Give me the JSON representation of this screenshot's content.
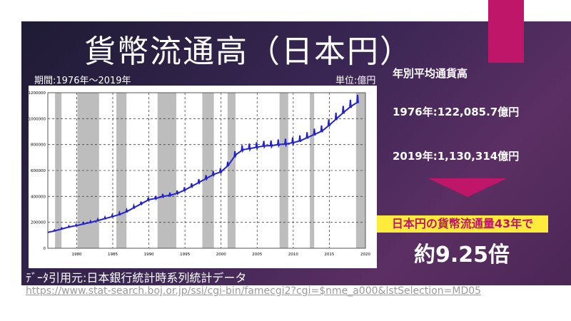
{
  "title": "貨幣流通高（日本円）",
  "period": "期間:1976年～2019年",
  "unit": "単位:億円",
  "side": {
    "heading": "年別平均通貨高",
    "value_1976": "1976年:122,085.7億円",
    "value_2019": "2019年:1,130,314億円",
    "highlight": "日本円の貨幣流通量43年で",
    "result": "約9.25倍"
  },
  "source": "ﾃﾞｰﾀ引用元:日本銀行統計時系列統計データ",
  "url": "https://www.stat-search.boj.or.jp/ssi/cgi-bin/famecgi2?cgi=$nme_a000&lstSelection=MD05",
  "colors": {
    "line": "#2222cc",
    "shade": "#bdbdbd",
    "accent": "#c0166a",
    "highlight_bg": "#ffeb3b"
  },
  "chart_data": {
    "type": "line",
    "title": "",
    "xlabel": "",
    "ylabel": "",
    "xlim": [
      1976,
      2020
    ],
    "ylim": [
      0,
      1200000
    ],
    "x_ticks": [
      "1980",
      "1985",
      "1990",
      "1995",
      "2000",
      "2005",
      "2010",
      "2015",
      "2020"
    ],
    "y_ticks": [
      "0",
      "200000",
      "400000",
      "600000",
      "800000",
      "1000000",
      "1200000"
    ],
    "grid": true,
    "shaded_periods": [
      [
        1977.0,
        1977.9
      ],
      [
        1980.1,
        1983.1
      ],
      [
        1985.5,
        1986.9
      ],
      [
        1991.2,
        1993.8
      ],
      [
        1997.4,
        1999.0
      ],
      [
        2000.9,
        2002.0
      ],
      [
        2008.1,
        2009.3
      ],
      [
        2012.3,
        2012.9
      ],
      [
        2018.7,
        2020.0
      ]
    ],
    "series": [
      {
        "x": [
          1976,
          1977,
          1978,
          1979,
          1980,
          1981,
          1982,
          1983,
          1984,
          1985,
          1986,
          1987,
          1988,
          1989,
          1990,
          1991,
          1992,
          1993,
          1994,
          1995,
          1996,
          1997,
          1998,
          1999,
          2000,
          2001,
          2002,
          2003,
          2004,
          2005,
          2006,
          2007,
          2008,
          2009,
          2010,
          2011,
          2012,
          2013,
          2014,
          2015,
          2016,
          2017,
          2018,
          2019
        ],
        "values": [
          122086,
          135000,
          150000,
          165000,
          175000,
          188000,
          200000,
          215000,
          230000,
          245000,
          262000,
          285000,
          315000,
          345000,
          375000,
          385000,
          400000,
          410000,
          425000,
          450000,
          480000,
          510000,
          540000,
          570000,
          590000,
          640000,
          720000,
          760000,
          770000,
          780000,
          790000,
          792000,
          800000,
          805000,
          815000,
          830000,
          855000,
          880000,
          905000,
          950000,
          1000000,
          1050000,
          1095000,
          1130314
        ]
      }
    ]
  }
}
